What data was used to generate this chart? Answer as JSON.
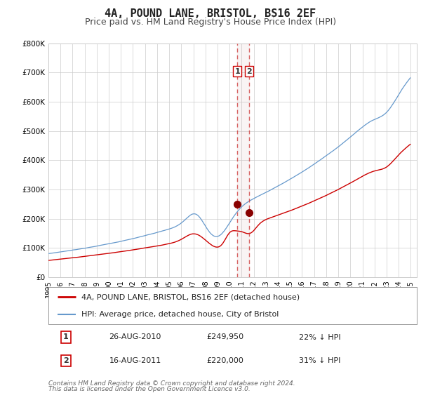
{
  "title": "4A, POUND LANE, BRISTOL, BS16 2EF",
  "subtitle": "Price paid vs. HM Land Registry's House Price Index (HPI)",
  "ylim": [
    0,
    800000
  ],
  "yticks": [
    0,
    100000,
    200000,
    300000,
    400000,
    500000,
    600000,
    700000,
    800000
  ],
  "ytick_labels": [
    "£0",
    "£100K",
    "£200K",
    "£300K",
    "£400K",
    "£500K",
    "£600K",
    "£700K",
    "£800K"
  ],
  "xlim_start": 1995.0,
  "xlim_end": 2025.5,
  "xticks": [
    1995,
    1996,
    1997,
    1998,
    1999,
    2000,
    2001,
    2002,
    2003,
    2004,
    2005,
    2006,
    2007,
    2008,
    2009,
    2010,
    2011,
    2012,
    2013,
    2014,
    2015,
    2016,
    2017,
    2018,
    2019,
    2020,
    2021,
    2022,
    2023,
    2024,
    2025
  ],
  "hpi_color": "#6699cc",
  "price_color": "#cc0000",
  "marker_color": "#880000",
  "vline_color": "#cc3333",
  "grid_color": "#cccccc",
  "background_color": "#ffffff",
  "transaction1_date": 2010.65,
  "transaction1_price": 249950,
  "transaction2_date": 2011.62,
  "transaction2_price": 220000,
  "legend_price_label": "4A, POUND LANE, BRISTOL, BS16 2EF (detached house)",
  "legend_hpi_label": "HPI: Average price, detached house, City of Bristol",
  "table_row1": [
    "1",
    "26-AUG-2010",
    "£249,950",
    "22% ↓ HPI"
  ],
  "table_row2": [
    "2",
    "16-AUG-2011",
    "£220,000",
    "31% ↓ HPI"
  ],
  "footer1": "Contains HM Land Registry data © Crown copyright and database right 2024.",
  "footer2": "This data is licensed under the Open Government Licence v3.0.",
  "title_fontsize": 11,
  "subtitle_fontsize": 9,
  "tick_fontsize": 7.5,
  "legend_fontsize": 8,
  "table_fontsize": 8,
  "footer_fontsize": 6.5
}
